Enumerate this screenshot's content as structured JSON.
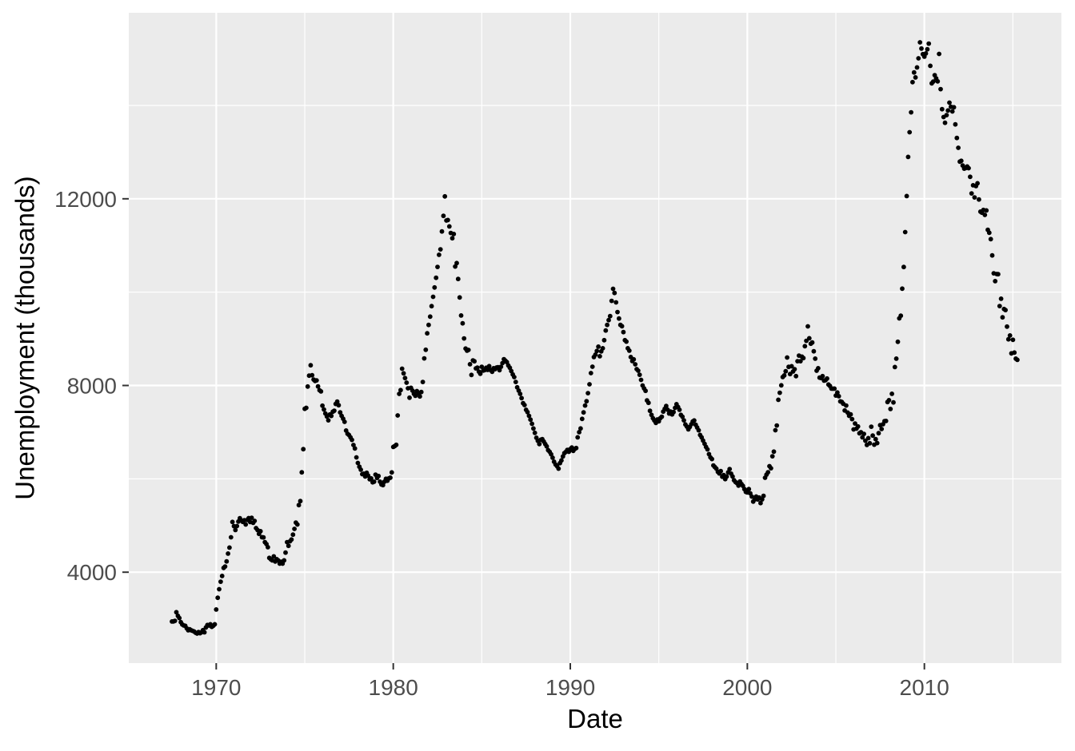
{
  "figure": {
    "xlabel": "Date",
    "ylabel": "Unemployment (thousands)"
  },
  "chart_data": {
    "type": "scatter",
    "title": "",
    "xlabel": "Date",
    "ylabel": "Unemployment (thousands)",
    "legend": false,
    "grid": true,
    "x_axis": {
      "ticks": [
        1970,
        1980,
        1990,
        2000,
        2010
      ],
      "minor_ticks": [
        1975,
        1985,
        1995,
        2005,
        2015
      ],
      "range": [
        1965.06,
        2017.74
      ]
    },
    "y_axis": {
      "ticks": [
        4000,
        8000,
        12000
      ],
      "minor_ticks": [
        6000,
        10000,
        14000
      ],
      "range": [
        2052,
        15985
      ]
    },
    "style": {
      "panel_bg": "#EBEBEB",
      "grid_color": "#FFFFFF",
      "point_color": "#000000",
      "tick_label_color": "#4D4D4D",
      "tick_mark_color": "#333333",
      "axis_title_color": "#000000",
      "point_radius": 2.9
    },
    "series": {
      "name": "unemploy",
      "frequency": "monthly",
      "start_year": 1967,
      "start_month": 7,
      "values": [
        2944,
        2945,
        2958,
        3143,
        3066,
        3018,
        2929,
        2878,
        2859,
        2852,
        2796,
        2756,
        2778,
        2756,
        2744,
        2729,
        2703,
        2685,
        2718,
        2692,
        2712,
        2758,
        2713,
        2816,
        2868,
        2856,
        2884,
        2829,
        2853,
        2884,
        3201,
        3453,
        3635,
        3797,
        3919,
        4093,
        4122,
        4231,
        4398,
        4527,
        4748,
        5076,
        4986,
        4903,
        4987,
        5085,
        5156,
        5107,
        5079,
        5112,
        5022,
        5119,
        5158,
        5075,
        5166,
        5058,
        5099,
        4944,
        4903,
        4821,
        4878,
        4750,
        4744,
        4644,
        4603,
        4535,
        4306,
        4275,
        4253,
        4338,
        4230,
        4279,
        4253,
        4183,
        4224,
        4183,
        4254,
        4419,
        4644,
        4565,
        4662,
        4700,
        4805,
        4927,
        5063,
        5022,
        5437,
        5523,
        6140,
        6636,
        7501,
        7520,
        7978,
        8210,
        8433,
        8220,
        8127,
        8097,
        8110,
        7980,
        7897,
        7873,
        7567,
        7484,
        7400,
        7336,
        7253,
        7378,
        7348,
        7439,
        7459,
        7605,
        7655,
        7577,
        7423,
        7350,
        7288,
        7222,
        7035,
        6967,
        6940,
        6890,
        6835,
        6725,
        6651,
        6460,
        6340,
        6260,
        6196,
        6100,
        6110,
        6050,
        6130,
        6070,
        5990,
        6010,
        5925,
        5940,
        6090,
        6020,
        6060,
        5940,
        5880,
        5865,
        5940,
        6000,
        5960,
        6010,
        6025,
        6137,
        6683,
        6702,
        6729,
        7358,
        7820,
        7900,
        8359,
        8260,
        8160,
        8060,
        7940,
        7738,
        7950,
        7890,
        7820,
        7780,
        7880,
        7830,
        7765,
        7860,
        8075,
        8580,
        8765,
        9118,
        9298,
        9475,
        9700,
        9900,
        10100,
        10308,
        10541,
        10800,
        10917,
        11300,
        11634,
        12051,
        11534,
        11545,
        11408,
        11268,
        11154,
        11246,
        10548,
        10623,
        10282,
        9887,
        9499,
        9331,
        9008,
        8791,
        8746,
        8762,
        8456,
        8226,
        8537,
        8519,
        8367,
        8381,
        8298,
        8251,
        8400,
        8320,
        8330,
        8380,
        8334,
        8415,
        8330,
        8295,
        8370,
        8350,
        8385,
        8390,
        8329,
        8400,
        8480,
        8563,
        8530,
        8500,
        8430,
        8380,
        8310,
        8237,
        8180,
        8076,
        7960,
        7890,
        7820,
        7730,
        7620,
        7580,
        7480,
        7430,
        7350,
        7270,
        7180,
        7080,
        6985,
        6880,
        6815,
        6745,
        6838,
        6850,
        6800,
        6745,
        6695,
        6615,
        6580,
        6526,
        6453,
        6367,
        6306,
        6273,
        6219,
        6337,
        6395,
        6480,
        6550,
        6580,
        6620,
        6580,
        6635,
        6670,
        6600,
        6640,
        6660,
        6890,
        7000,
        7080,
        7285,
        7423,
        7570,
        7663,
        7835,
        8025,
        8265,
        8403,
        8609,
        8660,
        8740,
        8832,
        8626,
        8731,
        8797,
        8970,
        9177,
        9297,
        9400,
        9486,
        9813,
        10071,
        9983,
        9780,
        9573,
        9435,
        9297,
        9270,
        9143,
        8970,
        8940,
        8798,
        8747,
        8609,
        8523,
        8560,
        8454,
        8351,
        8316,
        8230,
        8120,
        8000,
        7938,
        7886,
        7680,
        7628,
        7457,
        7371,
        7300,
        7250,
        7199,
        7273,
        7233,
        7300,
        7330,
        7440,
        7500,
        7560,
        7480,
        7400,
        7440,
        7380,
        7430,
        7520,
        7600,
        7540,
        7480,
        7370,
        7330,
        7253,
        7165,
        7120,
        7060,
        7110,
        7170,
        7230,
        7250,
        7158,
        7100,
        7040,
        6940,
        6890,
        6820,
        6750,
        6683,
        6631,
        6530,
        6459,
        6424,
        6287,
        6250,
        6218,
        6150,
        6115,
        6166,
        6046,
        6080,
        5994,
        6050,
        6140,
        6210,
        6111,
        6050,
        5970,
        5930,
        5908,
        5856,
        5942,
        5890,
        5850,
        5780,
        5720,
        5708,
        5780,
        5690,
        5620,
        5513,
        5560,
        5620,
        5560,
        5599,
        5480,
        5560,
        5634,
        6023,
        6089,
        6141,
        6271,
        6226,
        6484,
        6583,
        7042,
        7142,
        7694,
        7844,
        8003,
        8182,
        8215,
        8304,
        8599,
        8399,
        8245,
        8413,
        8300,
        8350,
        8200,
        8520,
        8640,
        8520,
        8618,
        8588,
        8842,
        8957,
        9266,
        9011,
        8896,
        8921,
        8732,
        8576,
        8317,
        8370,
        8167,
        8160,
        8200,
        8105,
        8114,
        8149,
        8021,
        7990,
        7934,
        7931,
        7934,
        7784,
        7850,
        7770,
        7660,
        7650,
        7610,
        7465,
        7570,
        7420,
        7350,
        7380,
        7280,
        7059,
        7185,
        7075,
        7122,
        6977,
        6998,
        6890,
        6963,
        6818,
        6727,
        6872,
        6762,
        7116,
        6927,
        6731,
        6850,
        6766,
        6979,
        7149,
        7067,
        7170,
        7237,
        7240,
        7645,
        7685,
        7497,
        7822,
        7637,
        8395,
        8575,
        8937,
        9438,
        9494,
        10074,
        10538,
        11286,
        12058,
        12898,
        13426,
        13853,
        14499,
        14707,
        14601,
        14814,
        15009,
        15352,
        15219,
        15098,
        15046,
        15113,
        15202,
        15325,
        14849,
        14474,
        14512,
        14648,
        14579,
        14516,
        15104,
        14348,
        13919,
        13751,
        13628,
        13792,
        13892,
        14059,
        13971,
        13871,
        13960,
        13594,
        13302,
        13093,
        12797,
        12813,
        12713,
        12646,
        12660,
        12692,
        12656,
        12471,
        12115,
        12290,
        12029,
        12273,
        12332,
        11984,
        11724,
        11702,
        11760,
        11654,
        11751,
        11335,
        11272,
        11136,
        10787,
        10404,
        10236,
        10387,
        10384,
        9702,
        9859,
        9460,
        9638,
        9616,
        9262,
        8990,
        9071,
        8688,
        8979,
        8705,
        8575,
        8549
      ]
    }
  }
}
